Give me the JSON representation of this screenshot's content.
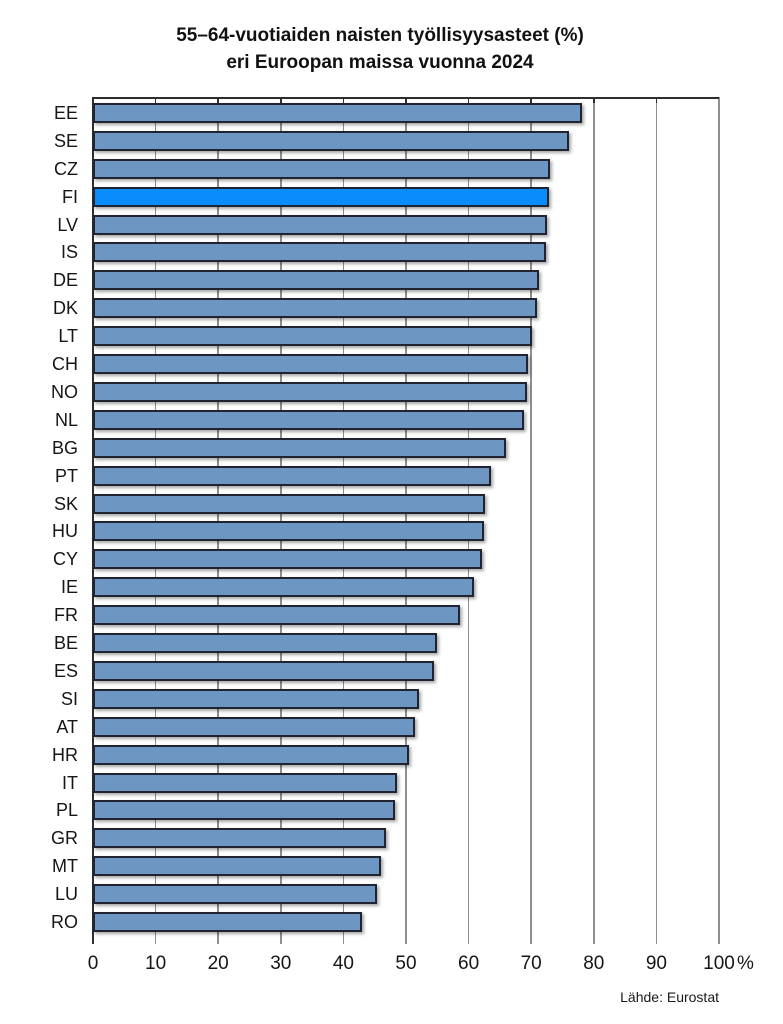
{
  "title": {
    "line1": "55–64-vuotiaiden naisten työllisyysasteet (%)",
    "line2": "eri Euroopan maissa vuonna 2024"
  },
  "source": "Lähde: Eurostat",
  "axis": {
    "ticks": [
      0,
      10,
      20,
      30,
      40,
      50,
      60,
      70,
      80,
      90,
      100
    ],
    "unit_label": "%"
  },
  "colors": {
    "bar": "#6D96C2",
    "highlight": "#0B8CFB",
    "bar_border": "#1f2430",
    "gridline": "#8f8f8f",
    "axis_line": "#2e2e2e"
  },
  "chart_data": {
    "type": "bar",
    "orientation": "horizontal",
    "title": "55–64-vuotiaiden naisten työllisyysasteet (%) eri Euroopan maissa vuonna 2024",
    "xlabel": "%",
    "ylabel": "",
    "xlim": [
      0,
      100
    ],
    "grid": true,
    "highlighted_category": "FI",
    "categories": [
      "EE",
      "SE",
      "CZ",
      "FI",
      "LV",
      "IS",
      "DE",
      "DK",
      "LT",
      "CH",
      "NO",
      "NL",
      "BG",
      "PT",
      "SK",
      "HU",
      "CY",
      "IE",
      "FR",
      "BE",
      "ES",
      "SI",
      "AT",
      "HR",
      "IT",
      "PL",
      "GR",
      "MT",
      "LU",
      "RO"
    ],
    "values": [
      78.1,
      76.1,
      73.0,
      72.8,
      72.6,
      72.4,
      71.3,
      71.0,
      70.1,
      69.5,
      69.4,
      68.8,
      66.0,
      63.6,
      62.6,
      62.4,
      62.2,
      60.8,
      58.6,
      54.9,
      54.5,
      52.1,
      51.5,
      50.5,
      48.5,
      48.3,
      46.8,
      46.0,
      45.4,
      43.0
    ]
  }
}
